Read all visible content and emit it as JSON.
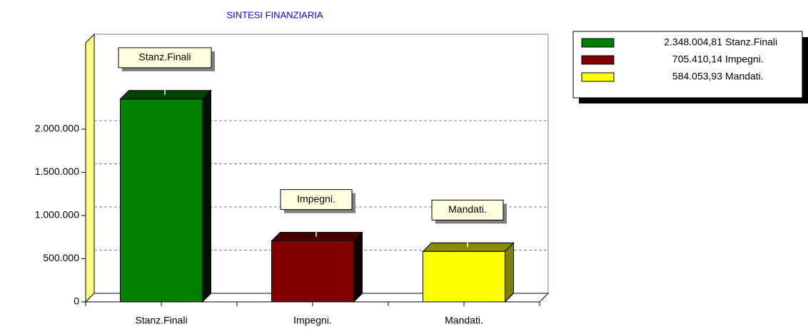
{
  "chart_data": {
    "type": "bar",
    "title": "SINTESI FINANZIARIA",
    "categories": [
      "Stanz.Finali",
      "Impegni.",
      "Mandati."
    ],
    "values": [
      2348004.81,
      705410.14,
      584053.93
    ],
    "value_labels": [
      "2.348.004,81",
      "705.410,14",
      "584.053,93"
    ],
    "colors": [
      "#008000",
      "#800000",
      "#ffff00"
    ],
    "ylim": [
      0,
      3000000
    ],
    "yticks": [
      0,
      {
        "value": 500000,
        "label": "500.000"
      },
      {
        "value": 1000000,
        "label": "1.000.000"
      },
      {
        "value": 1500000,
        "label": "1.500.000"
      },
      {
        "value": 2000000,
        "label": "2.000.000"
      }
    ],
    "grid": true,
    "legend": "top-right"
  }
}
